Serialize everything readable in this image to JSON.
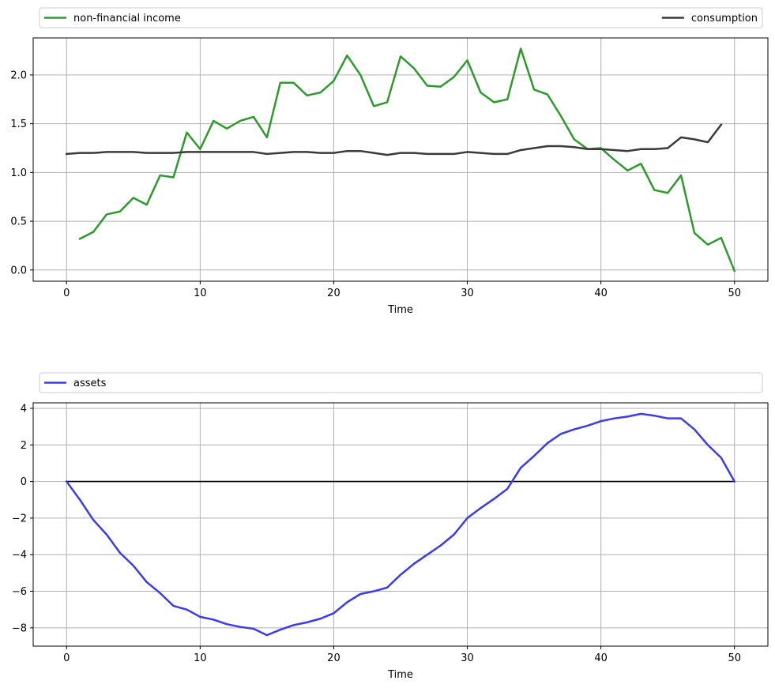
{
  "chart_data": [
    {
      "type": "line",
      "title": "",
      "xlabel": "Time",
      "ylabel": "",
      "xlim": [
        -2.5,
        52.5
      ],
      "ylim": [
        -0.115,
        2.38
      ],
      "xticks": [
        0,
        10,
        20,
        30,
        40,
        50
      ],
      "yticks": [
        0.0,
        0.5,
        1.0,
        1.5,
        2.0
      ],
      "ytick_labels": [
        "0.0",
        "0.5",
        "1.0",
        "1.5",
        "2.0"
      ],
      "grid": true,
      "legend_placement": "above, expanded across top",
      "series": [
        {
          "name": "non-financial income",
          "color": "#2e9a2e",
          "x": [
            1,
            2,
            3,
            4,
            5,
            6,
            7,
            8,
            9,
            10,
            11,
            12,
            13,
            14,
            15,
            16,
            17,
            18,
            19,
            20,
            21,
            22,
            23,
            24,
            25,
            26,
            27,
            28,
            29,
            30,
            31,
            32,
            33,
            34,
            35,
            36,
            37,
            38,
            39,
            40,
            41,
            42,
            43,
            44,
            45,
            46,
            47,
            48,
            49,
            50
          ],
          "values": [
            0.32,
            0.39,
            0.57,
            0.6,
            0.74,
            0.67,
            0.97,
            0.95,
            1.41,
            1.24,
            1.53,
            1.45,
            1.53,
            1.57,
            1.36,
            1.92,
            1.92,
            1.79,
            1.82,
            1.94,
            2.2,
            2.0,
            1.68,
            1.72,
            2.19,
            2.07,
            1.89,
            1.88,
            1.98,
            2.15,
            1.82,
            1.72,
            1.75,
            2.27,
            1.85,
            1.8,
            1.58,
            1.34,
            1.24,
            1.25,
            1.13,
            1.02,
            1.09,
            0.82,
            0.79,
            0.97,
            0.38,
            0.26,
            0.33,
            -0.01
          ]
        },
        {
          "name": "consumption",
          "color": "#3a3a3a",
          "x": [
            0,
            1,
            2,
            3,
            4,
            5,
            6,
            7,
            8,
            9,
            10,
            11,
            12,
            13,
            14,
            15,
            16,
            17,
            18,
            19,
            20,
            21,
            22,
            23,
            24,
            25,
            26,
            27,
            28,
            29,
            30,
            31,
            32,
            33,
            34,
            35,
            36,
            37,
            38,
            39,
            40,
            41,
            42,
            43,
            44,
            45,
            46,
            47,
            48,
            49
          ],
          "values": [
            1.19,
            1.2,
            1.2,
            1.21,
            1.21,
            1.21,
            1.2,
            1.2,
            1.2,
            1.21,
            1.21,
            1.21,
            1.21,
            1.21,
            1.21,
            1.19,
            1.2,
            1.21,
            1.21,
            1.2,
            1.2,
            1.22,
            1.22,
            1.2,
            1.18,
            1.2,
            1.2,
            1.19,
            1.19,
            1.19,
            1.21,
            1.2,
            1.19,
            1.19,
            1.23,
            1.25,
            1.27,
            1.27,
            1.26,
            1.24,
            1.24,
            1.23,
            1.22,
            1.24,
            1.24,
            1.25,
            1.36,
            1.34,
            1.31,
            1.49
          ]
        }
      ]
    },
    {
      "type": "line",
      "title": "",
      "xlabel": "Time",
      "ylabel": "",
      "xlim": [
        -2.5,
        52.5
      ],
      "ylim": [
        -9.0,
        4.3
      ],
      "xticks": [
        0,
        10,
        20,
        30,
        40,
        50
      ],
      "yticks": [
        -8,
        -6,
        -4,
        -2,
        0,
        2,
        4
      ],
      "ytick_labels": [
        "−8",
        "−6",
        "−4",
        "−2",
        "0",
        "2",
        "4"
      ],
      "grid": true,
      "legend_placement": "above, expanded across top",
      "zero_line": {
        "x": [
          0,
          50
        ],
        "y": 0,
        "color": "#000000"
      },
      "series": [
        {
          "name": "assets",
          "color": "#3b3bea",
          "x": [
            0,
            1,
            2,
            3,
            4,
            5,
            6,
            7,
            8,
            9,
            10,
            11,
            12,
            13,
            14,
            15,
            16,
            17,
            18,
            19,
            20,
            21,
            22,
            23,
            24,
            25,
            26,
            27,
            28,
            29,
            30,
            31,
            32,
            33,
            34,
            35,
            36,
            37,
            38,
            39,
            40,
            41,
            42,
            43,
            44,
            45,
            46,
            47,
            48,
            49,
            50
          ],
          "values": [
            0,
            -1.0,
            -2.1,
            -2.9,
            -3.9,
            -4.6,
            -5.5,
            -6.1,
            -6.8,
            -7.0,
            -7.4,
            -7.55,
            -7.8,
            -7.95,
            -8.05,
            -8.4,
            -8.1,
            -7.85,
            -7.7,
            -7.5,
            -7.2,
            -6.6,
            -6.15,
            -6.0,
            -5.8,
            -5.1,
            -4.5,
            -4.0,
            -3.5,
            -2.9,
            -2.0,
            -1.45,
            -0.95,
            -0.4,
            0.75,
            1.4,
            2.1,
            2.6,
            2.85,
            3.05,
            3.3,
            3.45,
            3.55,
            3.7,
            3.6,
            3.45,
            3.45,
            2.85,
            2.0,
            1.3,
            0.0
          ]
        }
      ]
    }
  ]
}
